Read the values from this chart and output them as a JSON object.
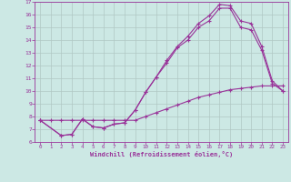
{
  "xlabel": "Windchill (Refroidissement éolien,°C)",
  "bg_color": "#cce8e4",
  "grid_color": "#b0c8c4",
  "line_color": "#993399",
  "xlim": [
    -0.5,
    23.5
  ],
  "ylim": [
    6,
    17
  ],
  "yticks": [
    6,
    7,
    8,
    9,
    10,
    11,
    12,
    13,
    14,
    15,
    16,
    17
  ],
  "xticks": [
    0,
    1,
    2,
    3,
    4,
    5,
    6,
    7,
    8,
    9,
    10,
    11,
    12,
    13,
    14,
    15,
    16,
    17,
    18,
    19,
    20,
    21,
    22,
    23
  ],
  "line1_x": [
    0,
    1,
    2,
    3,
    4,
    5,
    6,
    7,
    8,
    9,
    10,
    11,
    12,
    13,
    14,
    15,
    16,
    17,
    18,
    19,
    20,
    21,
    22,
    23
  ],
  "line1_y": [
    7.7,
    7.7,
    7.7,
    7.7,
    7.7,
    7.7,
    7.7,
    7.7,
    7.7,
    7.7,
    8.0,
    8.3,
    8.6,
    8.9,
    9.2,
    9.5,
    9.7,
    9.9,
    10.1,
    10.2,
    10.3,
    10.4,
    10.4,
    10.4
  ],
  "line2_x": [
    0,
    2,
    3,
    4,
    5,
    6,
    7,
    8,
    9,
    10,
    11,
    12,
    13,
    14,
    15,
    16,
    17,
    18,
    19,
    20,
    21,
    22,
    23
  ],
  "line2_y": [
    7.7,
    6.5,
    6.6,
    7.8,
    7.2,
    7.1,
    7.4,
    7.5,
    8.5,
    9.9,
    11.1,
    12.4,
    13.5,
    14.3,
    15.3,
    15.9,
    16.8,
    16.7,
    15.5,
    15.3,
    13.5,
    10.8,
    10.0
  ],
  "line3_x": [
    0,
    2,
    3,
    4,
    5,
    6,
    7,
    8,
    9,
    10,
    11,
    12,
    13,
    14,
    15,
    16,
    17,
    18,
    19,
    20,
    21,
    22,
    23
  ],
  "line3_y": [
    7.7,
    6.5,
    6.6,
    7.8,
    7.2,
    7.1,
    7.4,
    7.5,
    8.5,
    9.9,
    11.1,
    12.2,
    13.4,
    14.0,
    15.0,
    15.5,
    16.5,
    16.5,
    15.0,
    14.8,
    13.2,
    10.6,
    10.0
  ]
}
